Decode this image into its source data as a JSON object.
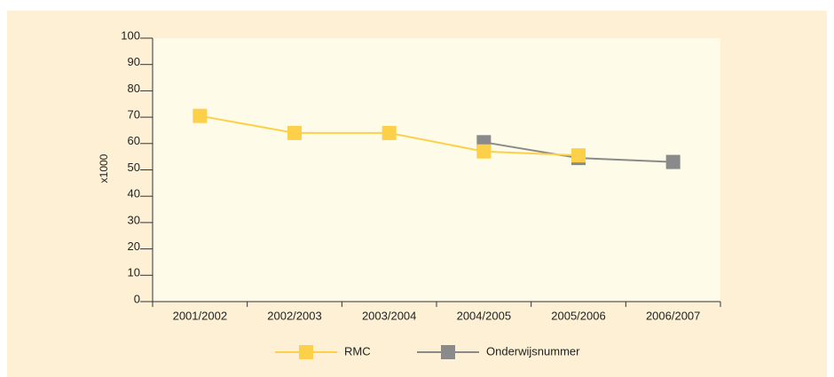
{
  "chart_data": {
    "type": "line",
    "categories": [
      "2001/2002",
      "2002/2003",
      "2003/2004",
      "2004/2005",
      "2005/2006",
      "2006/2007"
    ],
    "series": [
      {
        "name": "RMC",
        "color": "#fdd04a",
        "values": [
          70.5,
          64,
          64,
          57,
          55.5,
          null
        ]
      },
      {
        "name": "Onderwijsnummer",
        "color": "#8a8a8a",
        "values": [
          null,
          null,
          null,
          60.5,
          54.5,
          53
        ]
      }
    ],
    "y_label": "x1000",
    "ylim": [
      0,
      100
    ],
    "yticks": [
      0,
      10,
      20,
      30,
      40,
      50,
      60,
      70,
      80,
      90,
      100
    ]
  }
}
